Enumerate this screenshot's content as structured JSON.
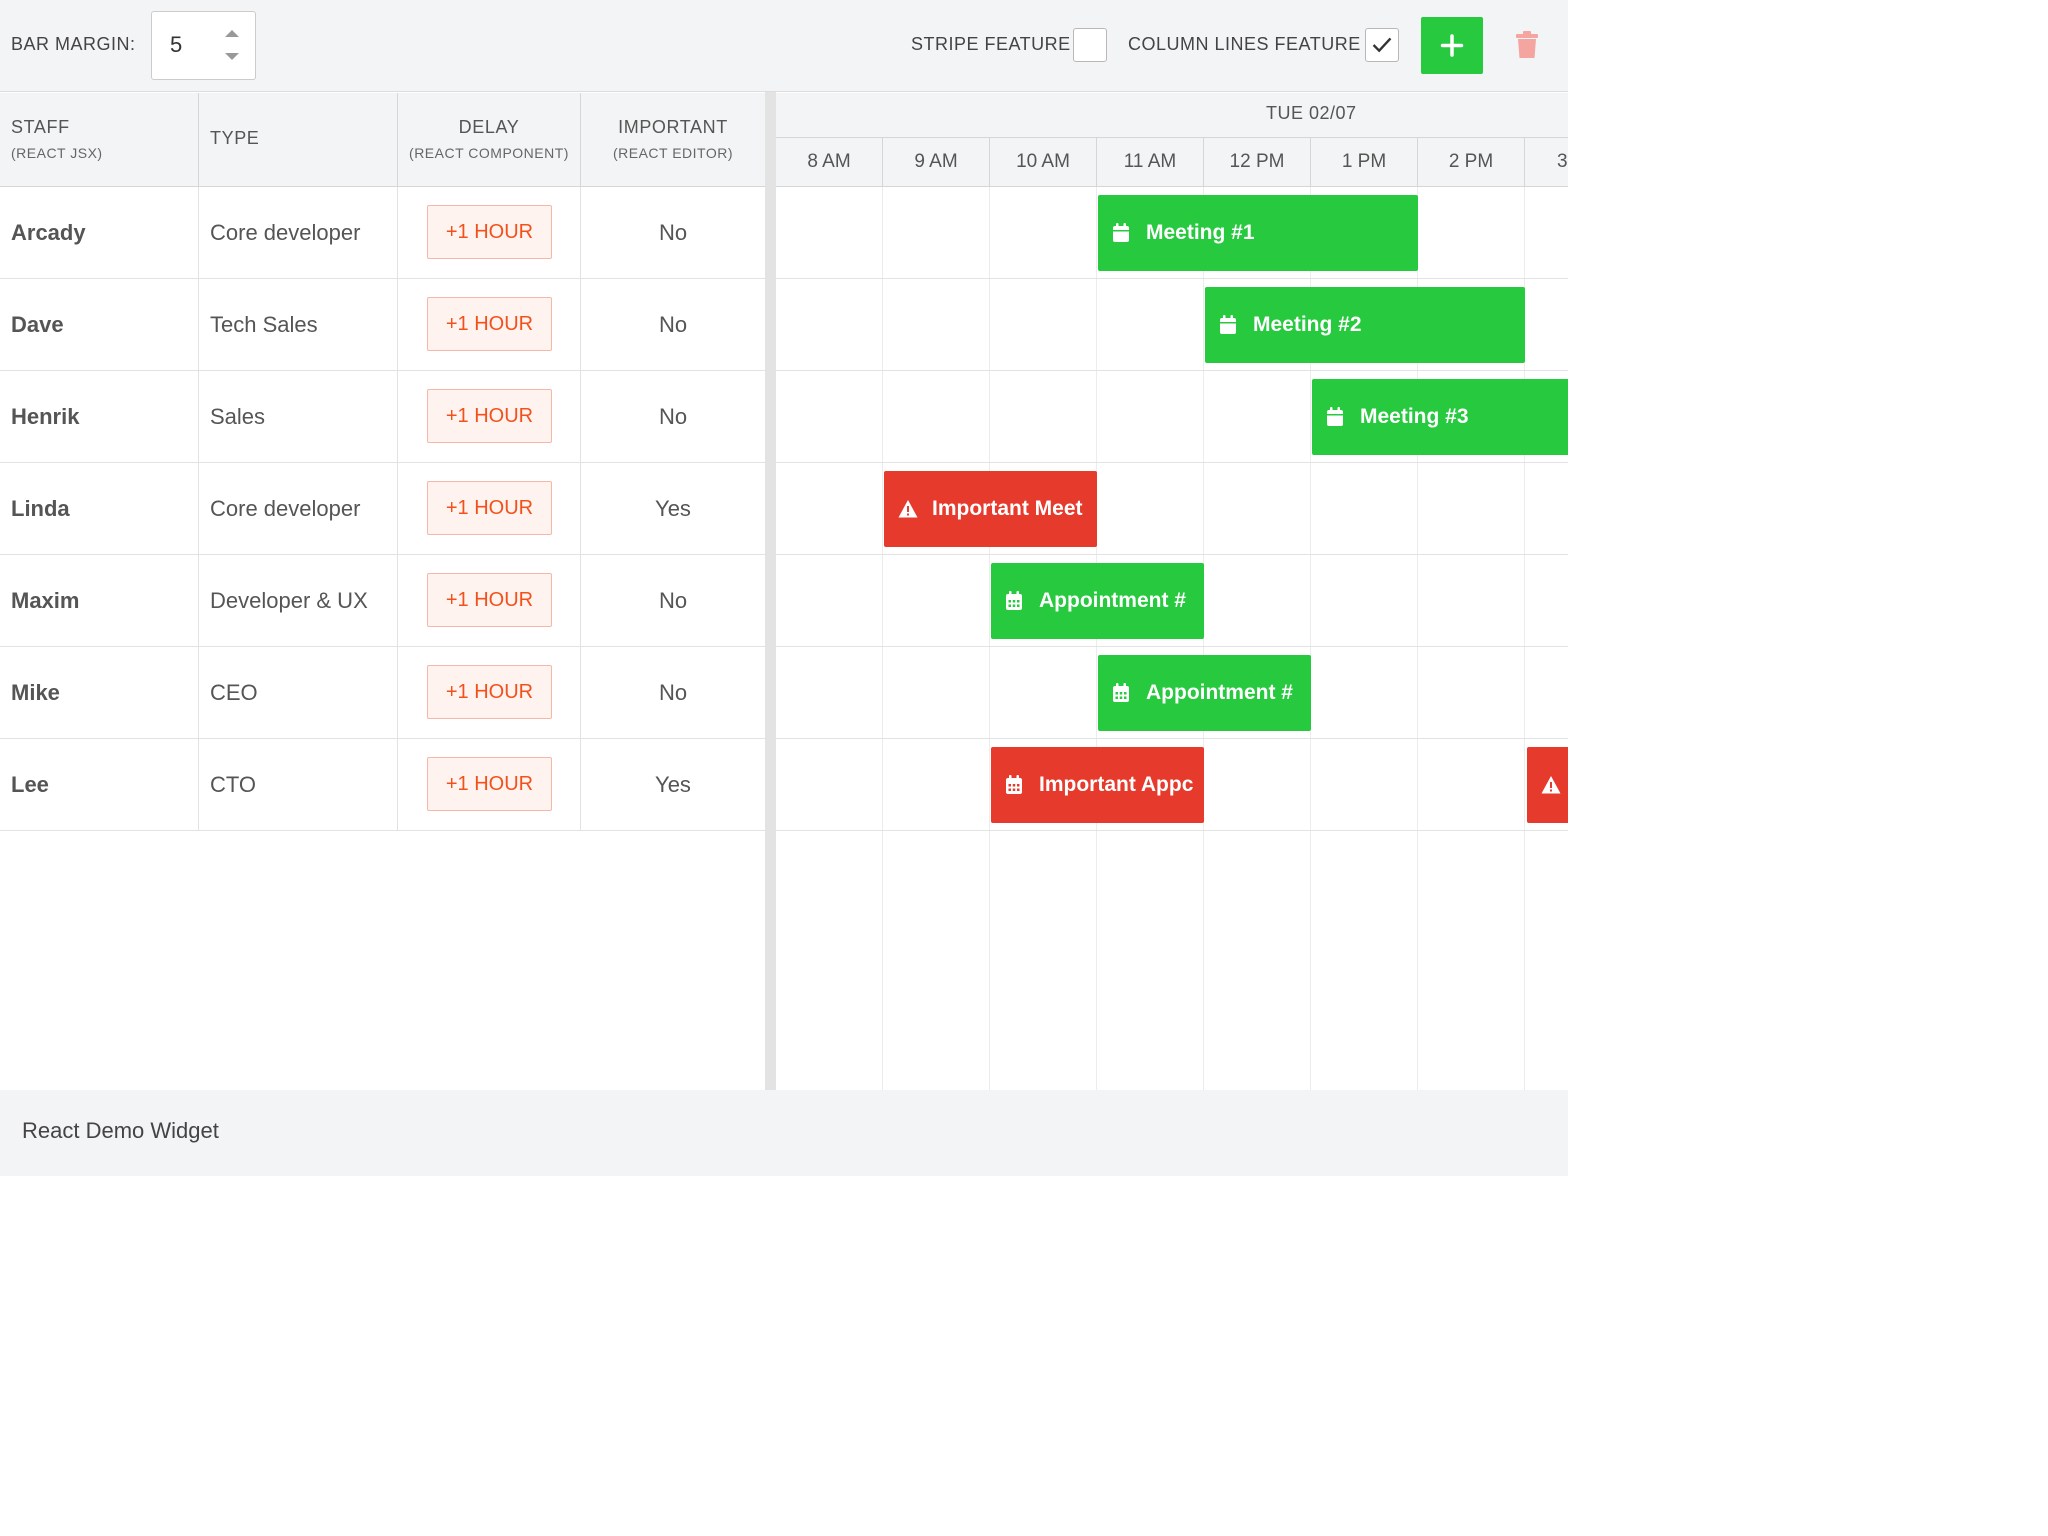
{
  "toolbar": {
    "bar_margin_label": "BAR MARGIN:",
    "bar_margin_value": "5",
    "stripe_label": "STRIPE FEATURE",
    "stripe_checked": false,
    "column_lines_label": "COLUMN LINES FEATURE",
    "column_lines_checked": true,
    "add_icon": "plus-icon",
    "delete_icon": "trash-icon",
    "accent_color": "#27c93f",
    "delete_color": "#f5a5a0"
  },
  "columns": {
    "staff": {
      "title": "STAFF",
      "sub": "(REACT JSX)"
    },
    "type": {
      "title": "TYPE"
    },
    "delay": {
      "title": "DELAY",
      "sub": "(REACT COMPONENT)"
    },
    "important": {
      "title": "IMPORTANT",
      "sub": "(REACT EDITOR)"
    }
  },
  "timeline": {
    "day": "TUE 02/07",
    "hours": [
      "8 AM",
      "9 AM",
      "10 AM",
      "11 AM",
      "12 PM",
      "1 PM",
      "2 PM",
      "3"
    ]
  },
  "rows": [
    {
      "staff": "Arcady",
      "type": "Core developer",
      "delay": "+1 HOUR",
      "important": "No"
    },
    {
      "staff": "Dave",
      "type": "Tech Sales",
      "delay": "+1 HOUR",
      "important": "No"
    },
    {
      "staff": "Henrik",
      "type": "Sales",
      "delay": "+1 HOUR",
      "important": "No"
    },
    {
      "staff": "Linda",
      "type": "Core developer",
      "delay": "+1 HOUR",
      "important": "Yes"
    },
    {
      "staff": "Maxim",
      "type": "Developer & UX",
      "delay": "+1 HOUR",
      "important": "No"
    },
    {
      "staff": "Mike",
      "type": "CEO",
      "delay": "+1 HOUR",
      "important": "No"
    },
    {
      "staff": "Lee",
      "type": "CTO",
      "delay": "+1 HOUR",
      "important": "Yes"
    }
  ],
  "events": [
    {
      "name": "Meeting #1",
      "icon": "calendar-icon",
      "color": "green"
    },
    {
      "name": "Meeting #2",
      "icon": "calendar-icon",
      "color": "green"
    },
    {
      "name": "Meeting #3",
      "icon": "calendar-icon",
      "color": "green"
    },
    {
      "name": "Important Meet",
      "icon": "warning-icon",
      "color": "red"
    },
    {
      "name": "Appointment #",
      "icon": "calendar-grid-icon",
      "color": "green"
    },
    {
      "name": "Appointment #",
      "icon": "calendar-grid-icon",
      "color": "green"
    },
    {
      "name": "Important Appc",
      "icon": "calendar-grid-icon",
      "color": "red"
    },
    {
      "name": "",
      "icon": "warning-icon",
      "color": "red"
    }
  ],
  "colors": {
    "event_green": "#27c93f",
    "event_red": "#e53a2c",
    "delay_text": "#f3511b"
  },
  "footer": {
    "title": "React Demo Widget"
  }
}
